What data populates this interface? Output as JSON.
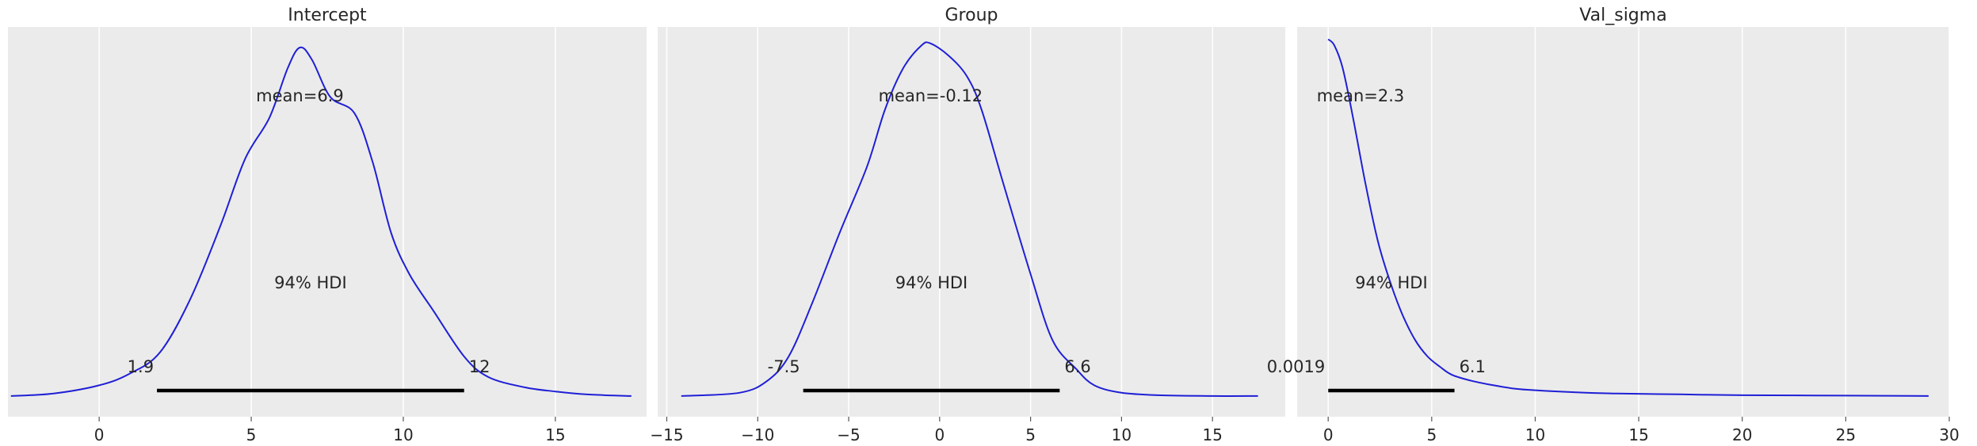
{
  "figure": {
    "colors": {
      "background": "#ebebeb",
      "grid": "#ffffff",
      "curve": "#1f1fd6",
      "hdi": "#000000"
    }
  },
  "chart_data": [
    {
      "type": "line",
      "title": "Intercept",
      "xlim": [
        -3,
        18
      ],
      "xticks": [
        0,
        5,
        10,
        15
      ],
      "grid": true,
      "mean_label": "mean=6.9",
      "hdi_label": "94% HDI",
      "hdi": {
        "low": 1.9,
        "high": 12,
        "low_label": "1.9",
        "high_label": "12"
      },
      "density": {
        "x": [
          -2.9,
          -1.5,
          0.0,
          1.0,
          2.0,
          3.0,
          4.0,
          4.8,
          5.6,
          6.2,
          6.6,
          7.0,
          7.6,
          8.4,
          9.0,
          9.6,
          10.2,
          11.0,
          12.0,
          12.8,
          14.0,
          15.0,
          16.0,
          17.5
        ],
        "y": [
          0.004,
          0.01,
          0.03,
          0.058,
          0.11,
          0.24,
          0.42,
          0.58,
          0.68,
          0.8,
          0.85,
          0.82,
          0.73,
          0.69,
          0.57,
          0.4,
          0.3,
          0.21,
          0.1,
          0.05,
          0.025,
          0.015,
          0.008,
          0.004
        ]
      }
    },
    {
      "type": "line",
      "title": "Group",
      "xlim": [
        -15.5,
        19
      ],
      "xticks": [
        -15,
        -10,
        -5,
        0,
        5,
        10,
        15
      ],
      "grid": true,
      "mean_label": "mean=-0.12",
      "hdi_label": "94% HDI",
      "hdi": {
        "low": -7.5,
        "high": 6.6,
        "low_label": "-7.5",
        "high_label": "6.6"
      },
      "density": {
        "x": [
          -14.2,
          -11.0,
          -9.5,
          -8.3,
          -7.0,
          -5.5,
          -4.0,
          -3.0,
          -2.0,
          -1.0,
          -0.5,
          0.5,
          1.5,
          2.3,
          3.5,
          5.0,
          6.2,
          7.5,
          8.5,
          10.0,
          12.0,
          15.0,
          17.5
        ],
        "y": [
          0.004,
          0.012,
          0.04,
          0.1,
          0.23,
          0.4,
          0.56,
          0.7,
          0.8,
          0.855,
          0.86,
          0.83,
          0.78,
          0.7,
          0.52,
          0.3,
          0.14,
          0.07,
          0.03,
          0.012,
          0.006,
          0.004,
          0.004
        ]
      }
    },
    {
      "type": "line",
      "title": "Val_sigma",
      "xlim": [
        -1.5,
        30
      ],
      "xticks": [
        0,
        5,
        10,
        15,
        20,
        25,
        30
      ],
      "grid": true,
      "mean_label": "mean=2.3",
      "hdi_label": "94% HDI",
      "hdi": {
        "low": 0.0019,
        "high": 6.1,
        "low_label": "0.0019",
        "high_label": "6.1"
      },
      "density": {
        "x": [
          0.0,
          0.3,
          0.7,
          1.2,
          1.8,
          2.4,
          3.0,
          3.6,
          4.2,
          4.8,
          5.4,
          6.0,
          7.0,
          8.0,
          9.0,
          10.0,
          12.0,
          14.0,
          17.0,
          20.0,
          25.0,
          29.0
        ],
        "y": [
          0.87,
          0.855,
          0.8,
          0.68,
          0.52,
          0.38,
          0.28,
          0.2,
          0.14,
          0.1,
          0.075,
          0.055,
          0.04,
          0.03,
          0.022,
          0.018,
          0.013,
          0.01,
          0.008,
          0.006,
          0.005,
          0.004
        ]
      }
    }
  ]
}
